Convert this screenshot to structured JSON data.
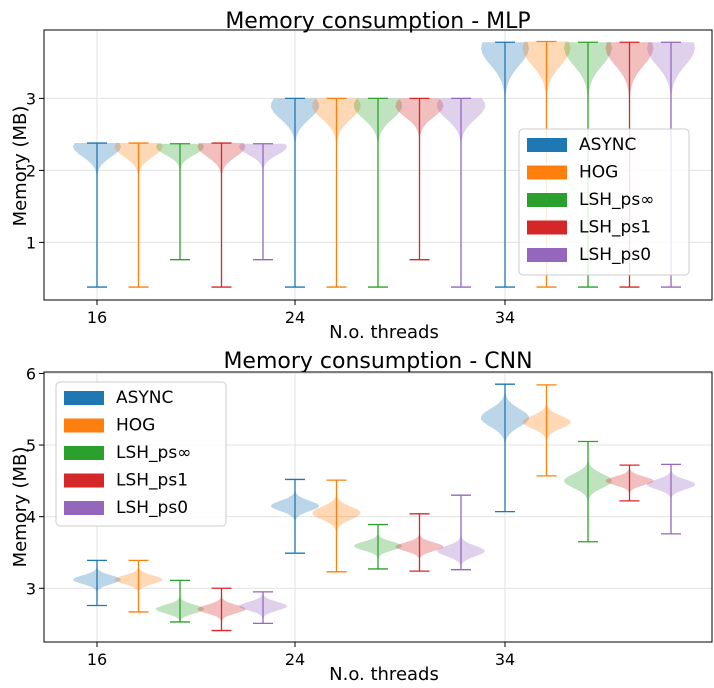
{
  "series_colors": [
    "#1f77b4",
    "#ff7f0e",
    "#2ca02c",
    "#d62728",
    "#9467bd"
  ],
  "chart_data": [
    {
      "type": "violin",
      "title": "Memory consumption - MLP",
      "xlabel": "N.o. threads",
      "ylabel": "Memory (MB)",
      "categories": [
        "16",
        "24",
        "34"
      ],
      "yticks": [
        1,
        2,
        3
      ],
      "ylim": [
        0.2,
        3.95
      ],
      "legend": {
        "position": "center-right",
        "entries": [
          "ASYNC",
          "HOG",
          "LSH_ps∞",
          "LSH_ps1",
          "LSH_ps0"
        ]
      },
      "grid": true,
      "series": [
        {
          "name": "ASYNC",
          "violins": [
            {
              "min": 0.38,
              "max": 2.38,
              "median": 2.33
            },
            {
              "min": 0.38,
              "max": 3.0,
              "median": 2.9
            },
            {
              "min": 0.38,
              "max": 3.78,
              "median": 3.7
            }
          ]
        },
        {
          "name": "HOG",
          "violins": [
            {
              "min": 0.38,
              "max": 2.38,
              "median": 2.33
            },
            {
              "min": 0.38,
              "max": 3.0,
              "median": 2.9
            },
            {
              "min": 0.38,
              "max": 3.79,
              "median": 3.7
            }
          ]
        },
        {
          "name": "LSH_ps∞",
          "violins": [
            {
              "min": 0.76,
              "max": 2.37,
              "median": 2.33
            },
            {
              "min": 0.38,
              "max": 3.0,
              "median": 2.9
            },
            {
              "min": 0.38,
              "max": 3.78,
              "median": 3.7
            }
          ]
        },
        {
          "name": "LSH_ps1",
          "violins": [
            {
              "min": 0.38,
              "max": 2.38,
              "median": 2.33
            },
            {
              "min": 0.76,
              "max": 3.0,
              "median": 2.9
            },
            {
              "min": 0.38,
              "max": 3.78,
              "median": 3.7
            }
          ]
        },
        {
          "name": "LSH_ps0",
          "violins": [
            {
              "min": 0.76,
              "max": 2.37,
              "median": 2.33
            },
            {
              "min": 0.38,
              "max": 3.0,
              "median": 2.9
            },
            {
              "min": 0.38,
              "max": 3.78,
              "median": 3.7
            }
          ]
        }
      ]
    },
    {
      "type": "violin",
      "title": "Memory consumption - CNN",
      "xlabel": "N.o. threads",
      "ylabel": "Memory (MB)",
      "categories": [
        "16",
        "24",
        "34"
      ],
      "yticks": [
        3,
        4,
        5,
        6
      ],
      "ylim": [
        2.25,
        6.02
      ],
      "legend": {
        "position": "upper-left",
        "entries": [
          "ASYNC",
          "HOG",
          "LSH_ps∞",
          "LSH_ps1",
          "LSH_ps0"
        ]
      },
      "grid": true,
      "series": [
        {
          "name": "ASYNC",
          "violins": [
            {
              "min": 2.76,
              "max": 3.39,
              "median": 3.12
            },
            {
              "min": 3.49,
              "max": 4.52,
              "median": 4.15
            },
            {
              "min": 4.07,
              "max": 5.85,
              "median": 5.38
            }
          ]
        },
        {
          "name": "HOG",
          "violins": [
            {
              "min": 2.67,
              "max": 3.39,
              "median": 3.12
            },
            {
              "min": 3.23,
              "max": 4.51,
              "median": 4.05
            },
            {
              "min": 4.57,
              "max": 5.84,
              "median": 5.32
            }
          ]
        },
        {
          "name": "LSH_ps∞",
          "violins": [
            {
              "min": 2.53,
              "max": 3.11,
              "median": 2.71
            },
            {
              "min": 3.27,
              "max": 3.89,
              "median": 3.59
            },
            {
              "min": 3.65,
              "max": 5.05,
              "median": 4.5
            }
          ]
        },
        {
          "name": "LSH_ps1",
          "violins": [
            {
              "min": 2.41,
              "max": 3.0,
              "median": 2.71
            },
            {
              "min": 3.24,
              "max": 4.04,
              "median": 3.58
            },
            {
              "min": 4.22,
              "max": 4.72,
              "median": 4.5
            }
          ]
        },
        {
          "name": "LSH_ps0",
          "violins": [
            {
              "min": 2.51,
              "max": 2.95,
              "median": 2.75
            },
            {
              "min": 3.26,
              "max": 4.3,
              "median": 3.52
            },
            {
              "min": 3.76,
              "max": 4.73,
              "median": 4.45
            }
          ]
        }
      ]
    }
  ]
}
